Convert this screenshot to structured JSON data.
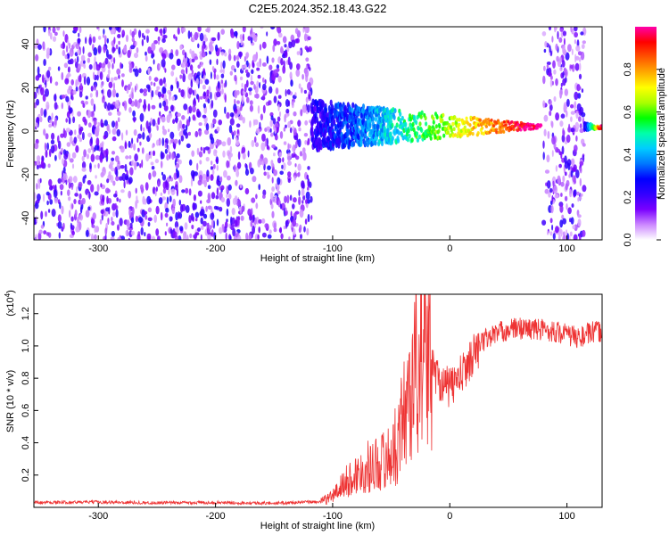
{
  "chart_data": [
    {
      "type": "heatmap",
      "title": "C2E5.2024.352.18.43.G22",
      "xlabel": "Height of straight line (km)",
      "ylabel": "Frequency (Hz)",
      "xlim": [
        -355,
        130
      ],
      "ylim": [
        -50,
        48
      ],
      "x_ticks": [
        -300,
        -200,
        -100,
        0,
        100
      ],
      "y_ticks": [
        -40,
        -20,
        0,
        20,
        40
      ],
      "colorbar": {
        "label": "Normalized spectral amplitude",
        "range": [
          0.0,
          1.0
        ],
        "ticks": [
          0.0,
          0.2,
          0.4,
          0.6,
          0.8
        ],
        "colors": [
          "#ffffff",
          "#cc88ff",
          "#7a00ff",
          "#3300ff",
          "#0000ff",
          "#0077ff",
          "#00ccff",
          "#00ffaa",
          "#00ff00",
          "#aaff00",
          "#ffff00",
          "#ffaa00",
          "#ff5500",
          "#ff0000",
          "#ff00aa"
        ]
      },
      "grid": false,
      "regions": [
        {
          "x_range": [
            -355,
            -118
          ],
          "description_class": "noise",
          "amplitude": [
            0.05,
            0.25
          ]
        },
        {
          "x_range": [
            -118,
            78
          ],
          "description_class": "signal-trace",
          "frequency_start": [
            -5,
            10
          ],
          "frequency_end": [
            1,
            3
          ]
        },
        {
          "x_range": [
            80,
            115
          ],
          "description_class": "noise",
          "amplitude": [
            0.05,
            0.25
          ]
        },
        {
          "x_range": [
            115,
            130
          ],
          "description_class": "signal-trace",
          "frequency": 2
        }
      ]
    },
    {
      "type": "line",
      "title": "",
      "xlabel": "Height of straight line (km)",
      "ylabel": "SNR (10 * v/v)",
      "y_multiplier": "(x10^4)",
      "xlim": [
        -355,
        130
      ],
      "ylim": [
        0,
        13200
      ],
      "x_ticks": [
        -300,
        -200,
        -100,
        0,
        100
      ],
      "y_ticks": [
        2000,
        4000,
        6000,
        8000,
        10000,
        12000
      ],
      "y_tick_labels": [
        "0.2",
        "0.4",
        "0.6",
        "0.8",
        "1.0",
        "1.2"
      ],
      "grid": false,
      "series": [
        {
          "color": "#ee3333",
          "x": [
            -355,
            -300,
            -250,
            -200,
            -150,
            -110,
            -100,
            -90,
            -80,
            -70,
            -60,
            -50,
            -45,
            -40,
            -35,
            -30,
            -25,
            -20,
            -15,
            -10,
            -5,
            0,
            10,
            20,
            30,
            40,
            50,
            60,
            70,
            80,
            90,
            100,
            110,
            120,
            130
          ],
          "y": [
            300,
            330,
            280,
            300,
            260,
            350,
            700,
            1500,
            2000,
            2500,
            2800,
            3200,
            4000,
            5500,
            7000,
            8200,
            9200,
            9800,
            8800,
            8000,
            7600,
            7400,
            8200,
            9500,
            10400,
            10800,
            11000,
            11100,
            11050,
            11000,
            10900,
            10700,
            10500,
            10800,
            10900
          ]
        }
      ]
    }
  ],
  "axis_tick_labels_top": [
    "-300",
    "-200",
    "-100",
    "0",
    "100"
  ],
  "axis_tick_labels_bottom": [
    "-300",
    "-200",
    "-100",
    "0",
    "100"
  ],
  "freq_tick_labels": [
    "-40",
    "-20",
    "0",
    "20",
    "40"
  ],
  "colorbar_tick_labels": [
    "0.0",
    "0.2",
    "0.4",
    "0.6",
    "0.8"
  ],
  "snr_tick_labels": [
    "0.2",
    "0.4",
    "0.6",
    "0.8",
    "1.0",
    "1.2"
  ],
  "snr_multiplier_text": "(x10",
  "snr_multiplier_exp": "4",
  "snr_multiplier_close": ")"
}
